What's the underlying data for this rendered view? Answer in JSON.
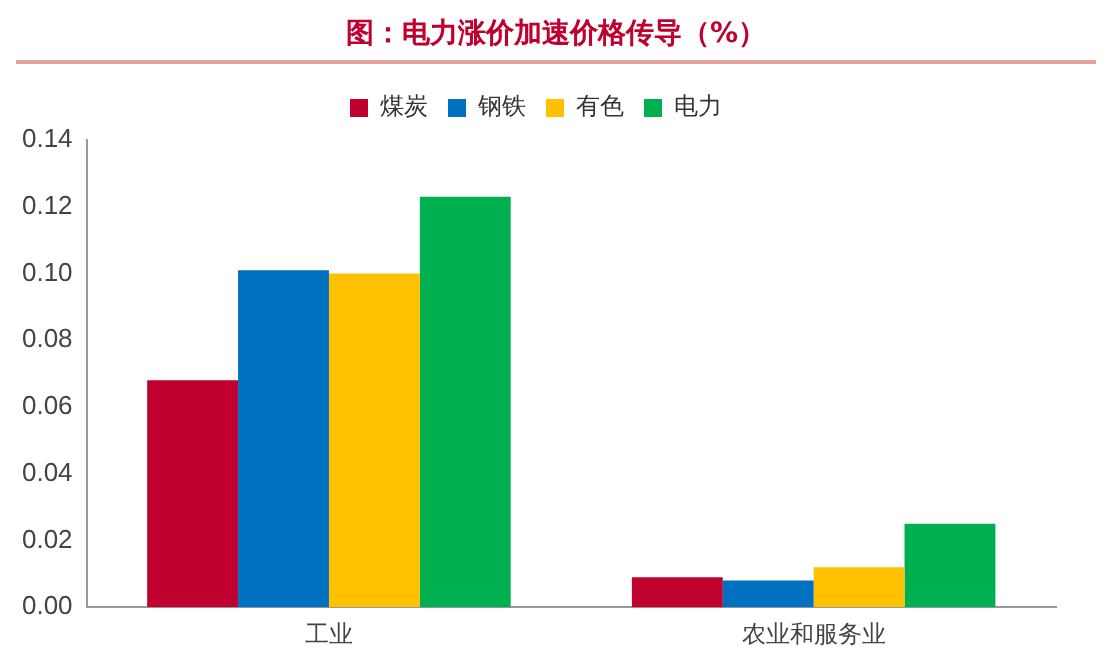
{
  "chart_data": {
    "type": "bar",
    "title": "图：电力涨价加速价格传导（%）",
    "categories": [
      "工业",
      "农业和服务业"
    ],
    "series": [
      {
        "name": "煤炭",
        "color": "#c0002f",
        "values": [
          0.068,
          0.009
        ]
      },
      {
        "name": "钢铁",
        "color": "#0070c0",
        "values": [
          0.101,
          0.008
        ]
      },
      {
        "name": "有色",
        "color": "#ffc000",
        "values": [
          0.1,
          0.012
        ]
      },
      {
        "name": "电力",
        "color": "#00b050",
        "values": [
          0.123,
          0.025
        ]
      }
    ],
    "ylim": [
      0,
      0.14
    ],
    "yticks": [
      {
        "value": 0,
        "label": "0.00"
      },
      0.02,
      0.04,
      0.06,
      0.08,
      {
        "value": 0.1,
        "label": "0.10"
      },
      0.12,
      0.14
    ],
    "grid": false,
    "legend": "top"
  }
}
